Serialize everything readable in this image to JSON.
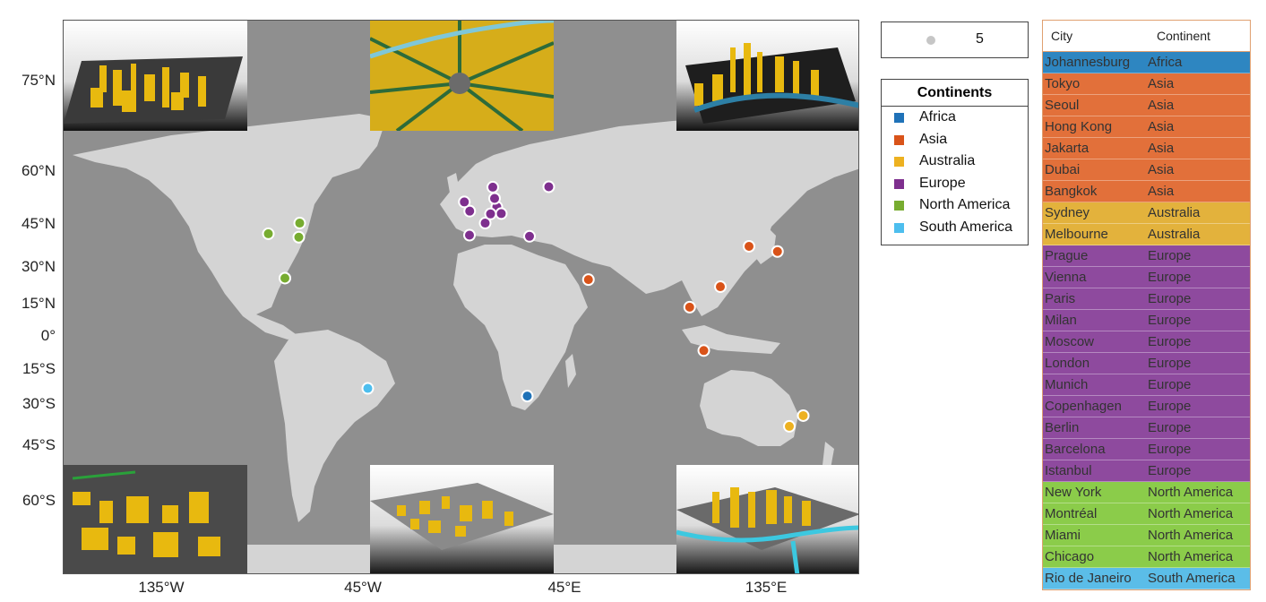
{
  "map": {
    "lat_ticks": [
      "75°N",
      "60°N",
      "45°N",
      "30°N",
      "15°N",
      "0°",
      "15°S",
      "30°S",
      "45°S",
      "60°S"
    ],
    "lon_ticks": [
      "135°W",
      "45°W",
      "45°E",
      "135°E"
    ],
    "inset_cities_depicted": 6,
    "markers": [
      {
        "continent": "Africa",
        "lon": 28.0,
        "lat": -26.2
      },
      {
        "continent": "Asia",
        "lon": 139.7,
        "lat": 35.7
      },
      {
        "continent": "Asia",
        "lon": 127.0,
        "lat": 37.5
      },
      {
        "continent": "Asia",
        "lon": 114.2,
        "lat": 22.3
      },
      {
        "continent": "Asia",
        "lon": 106.8,
        "lat": -6.2
      },
      {
        "continent": "Asia",
        "lon": 55.3,
        "lat": 25.2
      },
      {
        "continent": "Asia",
        "lon": 100.5,
        "lat": 13.8
      },
      {
        "continent": "Australia",
        "lon": 151.2,
        "lat": -33.9
      },
      {
        "continent": "Australia",
        "lon": 145.0,
        "lat": -37.8
      },
      {
        "continent": "Europe",
        "lon": 14.4,
        "lat": 50.1
      },
      {
        "continent": "Europe",
        "lon": 16.4,
        "lat": 48.2
      },
      {
        "continent": "Europe",
        "lon": 2.3,
        "lat": 48.9
      },
      {
        "continent": "Europe",
        "lon": 9.2,
        "lat": 45.5
      },
      {
        "continent": "Europe",
        "lon": 37.6,
        "lat": 55.8
      },
      {
        "continent": "Europe",
        "lon": -0.1,
        "lat": 51.5
      },
      {
        "continent": "Europe",
        "lon": 11.6,
        "lat": 48.1
      },
      {
        "continent": "Europe",
        "lon": 12.6,
        "lat": 55.7
      },
      {
        "continent": "Europe",
        "lon": 13.4,
        "lat": 52.5
      },
      {
        "continent": "Europe",
        "lon": 2.2,
        "lat": 41.4
      },
      {
        "continent": "Europe",
        "lon": 29.0,
        "lat": 41.0
      },
      {
        "continent": "North America",
        "lon": -74.0,
        "lat": 40.7
      },
      {
        "continent": "North America",
        "lon": -73.6,
        "lat": 45.5
      },
      {
        "continent": "North America",
        "lon": -80.2,
        "lat": 25.8
      },
      {
        "continent": "North America",
        "lon": -87.6,
        "lat": 41.9
      },
      {
        "continent": "South America",
        "lon": -43.2,
        "lat": -22.9
      }
    ]
  },
  "size_legend": {
    "value": "5"
  },
  "legend": {
    "title": "Continents",
    "items": [
      {
        "label": "Africa",
        "color": "#1f72b8"
      },
      {
        "label": "Asia",
        "color": "#d95319"
      },
      {
        "label": "Australia",
        "color": "#edb120"
      },
      {
        "label": "Europe",
        "color": "#7e2f8e"
      },
      {
        "label": "North America",
        "color": "#77ac30"
      },
      {
        "label": "South America",
        "color": "#4dbeee"
      }
    ]
  },
  "table": {
    "headers": [
      "City",
      "Continent"
    ],
    "row_colors": {
      "Africa": "#2e86c1",
      "Asia": "#e2703a",
      "Australia": "#e3b23c",
      "Europe": "#8e4a9e",
      "North America": "#8bcc4a",
      "South America": "#5bbde8"
    },
    "rows": [
      {
        "city": "Johannesburg",
        "continent": "Africa"
      },
      {
        "city": "Tokyo",
        "continent": "Asia"
      },
      {
        "city": "Seoul",
        "continent": "Asia"
      },
      {
        "city": "Hong Kong",
        "continent": "Asia"
      },
      {
        "city": "Jakarta",
        "continent": "Asia"
      },
      {
        "city": "Dubai",
        "continent": "Asia"
      },
      {
        "city": "Bangkok",
        "continent": "Asia"
      },
      {
        "city": "Sydney",
        "continent": "Australia"
      },
      {
        "city": "Melbourne",
        "continent": "Australia"
      },
      {
        "city": "Prague",
        "continent": "Europe"
      },
      {
        "city": "Vienna",
        "continent": "Europe"
      },
      {
        "city": "Paris",
        "continent": "Europe"
      },
      {
        "city": "Milan",
        "continent": "Europe"
      },
      {
        "city": "Moscow",
        "continent": "Europe"
      },
      {
        "city": "London",
        "continent": "Europe"
      },
      {
        "city": "Munich",
        "continent": "Europe"
      },
      {
        "city": "Copenhagen",
        "continent": "Europe"
      },
      {
        "city": "Berlin",
        "continent": "Europe"
      },
      {
        "city": "Barcelona",
        "continent": "Europe"
      },
      {
        "city": "Istanbul",
        "continent": "Europe"
      },
      {
        "city": "New York",
        "continent": "North America"
      },
      {
        "city": "Montréal",
        "continent": "North America"
      },
      {
        "city": "Miami",
        "continent": "North America"
      },
      {
        "city": "Chicago",
        "continent": "North America"
      },
      {
        "city": "Rio de Janeiro",
        "continent": "South America"
      }
    ]
  }
}
